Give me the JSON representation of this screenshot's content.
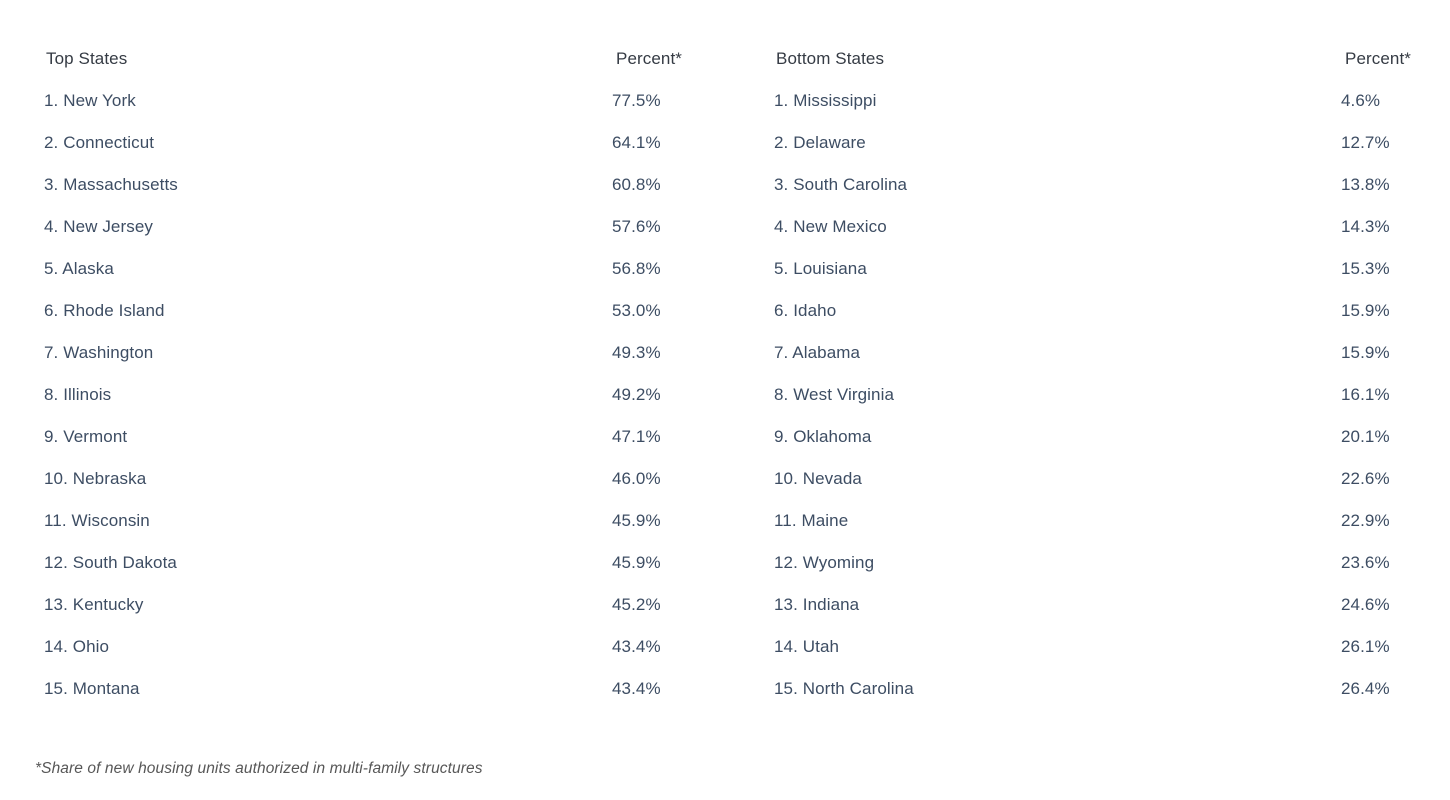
{
  "top_table": {
    "header": {
      "label": "Top States",
      "percent": "Percent*"
    },
    "rows": [
      {
        "rank_label": "1.",
        "state": "New York",
        "percent": "77.5%"
      },
      {
        "rank_label": "2.",
        "state": "Connecticut",
        "percent": "64.1%"
      },
      {
        "rank_label": "3.",
        "state": "Massachusetts",
        "percent": "60.8%"
      },
      {
        "rank_label": "4.",
        "state": "New Jersey",
        "percent": "57.6%"
      },
      {
        "rank_label": "5.",
        "state": "Alaska",
        "percent": "56.8%"
      },
      {
        "rank_label": "6.",
        "state": "Rhode Island",
        "percent": "53.0%"
      },
      {
        "rank_label": "7.",
        "state": "Washington",
        "percent": "49.3%"
      },
      {
        "rank_label": "8.",
        "state": "Illinois",
        "percent": "49.2%"
      },
      {
        "rank_label": "9.",
        "state": "Vermont",
        "percent": "47.1%"
      },
      {
        "rank_label": "10.",
        "state": "Nebraska",
        "percent": "46.0%"
      },
      {
        "rank_label": "11.",
        "state": "Wisconsin",
        "percent": "45.9%"
      },
      {
        "rank_label": "12.",
        "state": "South Dakota",
        "percent": "45.9%"
      },
      {
        "rank_label": "13.",
        "state": "Kentucky",
        "percent": "45.2%"
      },
      {
        "rank_label": "14.",
        "state": "Ohio",
        "percent": "43.4%"
      },
      {
        "rank_label": "15.",
        "state": "Montana",
        "percent": "43.4%"
      }
    ]
  },
  "bottom_table": {
    "header": {
      "label": "Bottom States",
      "percent": "Percent*"
    },
    "rows": [
      {
        "rank_label": "1.",
        "state": "Mississippi",
        "percent": "4.6%"
      },
      {
        "rank_label": "2.",
        "state": "Delaware",
        "percent": "12.7%"
      },
      {
        "rank_label": "3.",
        "state": "South Carolina",
        "percent": "13.8%"
      },
      {
        "rank_label": "4.",
        "state": "New Mexico",
        "percent": "14.3%"
      },
      {
        "rank_label": "5.",
        "state": "Louisiana",
        "percent": "15.3%"
      },
      {
        "rank_label": "6.",
        "state": "Idaho",
        "percent": "15.9%"
      },
      {
        "rank_label": "7.",
        "state": "Alabama",
        "percent": "15.9%"
      },
      {
        "rank_label": "8.",
        "state": "West Virginia",
        "percent": "16.1%"
      },
      {
        "rank_label": "9.",
        "state": "Oklahoma",
        "percent": "20.1%"
      },
      {
        "rank_label": "10.",
        "state": "Nevada",
        "percent": "22.6%"
      },
      {
        "rank_label": "11.",
        "state": "Maine",
        "percent": "22.9%"
      },
      {
        "rank_label": "12.",
        "state": "Wyoming",
        "percent": "23.6%"
      },
      {
        "rank_label": "13.",
        "state": "Indiana",
        "percent": "24.6%"
      },
      {
        "rank_label": "14.",
        "state": "Utah",
        "percent": "26.1%"
      },
      {
        "rank_label": "15.",
        "state": "North Carolina",
        "percent": "26.4%"
      }
    ]
  },
  "footnote": "*Share of new housing units authorized in multi-family structures",
  "colors": {
    "background": "#ffffff",
    "header_text": "#353b44",
    "body_text": "#3d4d63",
    "footnote_text": "#575757"
  },
  "chart_data": {
    "type": "table",
    "title": "",
    "footnote": "*Share of new housing units authorized in multi-family structures",
    "tables": [
      {
        "title": "Top States",
        "value_label": "Percent*",
        "categories": [
          "New York",
          "Connecticut",
          "Massachusetts",
          "New Jersey",
          "Alaska",
          "Rhode Island",
          "Washington",
          "Illinois",
          "Vermont",
          "Nebraska",
          "Wisconsin",
          "South Dakota",
          "Kentucky",
          "Ohio",
          "Montana"
        ],
        "values": [
          77.5,
          64.1,
          60.8,
          57.6,
          56.8,
          53.0,
          49.3,
          49.2,
          47.1,
          46.0,
          45.9,
          45.9,
          45.2,
          43.4,
          43.4
        ]
      },
      {
        "title": "Bottom States",
        "value_label": "Percent*",
        "categories": [
          "Mississippi",
          "Delaware",
          "South Carolina",
          "New Mexico",
          "Louisiana",
          "Idaho",
          "Alabama",
          "West Virginia",
          "Oklahoma",
          "Nevada",
          "Maine",
          "Wyoming",
          "Indiana",
          "Utah",
          "North Carolina"
        ],
        "values": [
          4.6,
          12.7,
          13.8,
          14.3,
          15.3,
          15.9,
          15.9,
          16.1,
          20.1,
          22.6,
          22.9,
          23.6,
          24.6,
          26.1,
          26.4
        ]
      }
    ]
  }
}
